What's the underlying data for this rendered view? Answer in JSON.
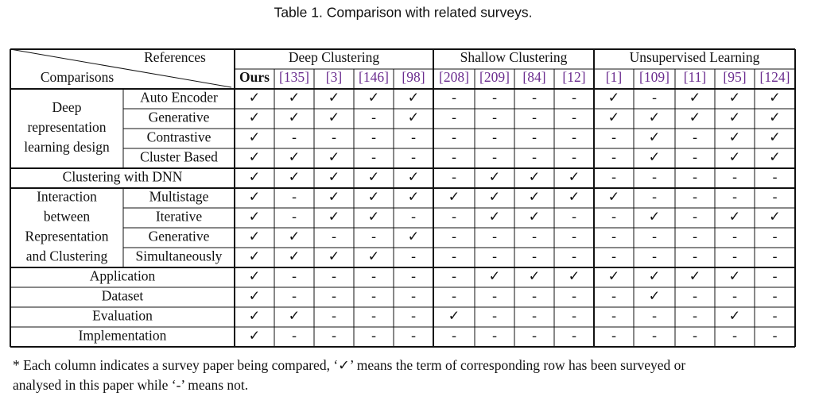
{
  "title": "Table 1.  Comparison with related surveys.",
  "table": {
    "corner_top": "References",
    "corner_bottom": "Comparisons",
    "groups": [
      {
        "label": "Deep Clustering",
        "refs": [
          "Ours",
          "[135]",
          "[3]",
          "[146]",
          "[98]"
        ]
      },
      {
        "label": "Shallow Clustering",
        "refs": [
          "[208]",
          "[209]",
          "[84]",
          "[12]"
        ]
      },
      {
        "label": "Unsupervised Learning",
        "refs": [
          "[1]",
          "[109]",
          "[11]",
          "[95]",
          "[124]"
        ]
      }
    ],
    "sections": [
      {
        "label": [
          "Deep",
          "representation",
          "learning design"
        ],
        "rows": [
          {
            "label": "Auto Encoder",
            "cells": [
              "✓",
              "✓",
              "✓",
              "✓",
              "✓",
              "-",
              "-",
              "-",
              "-",
              "✓",
              "-",
              "✓",
              "✓",
              "✓"
            ]
          },
          {
            "label": "Generative",
            "cells": [
              "✓",
              "✓",
              "✓",
              "-",
              "✓",
              "-",
              "-",
              "-",
              "-",
              "✓",
              "✓",
              "✓",
              "✓",
              "✓"
            ]
          },
          {
            "label": "Contrastive",
            "cells": [
              "✓",
              "-",
              "-",
              "-",
              "-",
              "-",
              "-",
              "-",
              "-",
              "-",
              "✓",
              "-",
              "✓",
              "✓"
            ]
          },
          {
            "label": "Cluster Based",
            "cells": [
              "✓",
              "✓",
              "✓",
              "-",
              "-",
              "-",
              "-",
              "-",
              "-",
              "-",
              "✓",
              "-",
              "✓",
              "✓"
            ]
          }
        ]
      },
      {
        "label": "Clustering with DNN",
        "cells": [
          "✓",
          "✓",
          "✓",
          "✓",
          "✓",
          "-",
          "✓",
          "✓",
          "✓",
          "-",
          "-",
          "-",
          "-",
          "-"
        ]
      },
      {
        "label": [
          "Interaction",
          "between",
          "Representation",
          "and Clustering"
        ],
        "rows": [
          {
            "label": "Multistage",
            "cells": [
              "✓",
              "-",
              "✓",
              "✓",
              "✓",
              "✓",
              "✓",
              "✓",
              "✓",
              "✓",
              "-",
              "-",
              "-",
              "-"
            ]
          },
          {
            "label": "Iterative",
            "cells": [
              "✓",
              "-",
              "✓",
              "✓",
              "-",
              "-",
              "✓",
              "✓",
              "-",
              "-",
              "✓",
              "-",
              "✓",
              "✓"
            ]
          },
          {
            "label": "Generative",
            "cells": [
              "✓",
              "✓",
              "-",
              "-",
              "✓",
              "-",
              "-",
              "-",
              "-",
              "-",
              "-",
              "-",
              "-",
              "-"
            ]
          },
          {
            "label": "Simultaneously",
            "cells": [
              "✓",
              "✓",
              "✓",
              "✓",
              "-",
              "-",
              "-",
              "-",
              "-",
              "-",
              "-",
              "-",
              "-",
              "-"
            ]
          }
        ]
      },
      {
        "label": "Application",
        "cells": [
          "✓",
          "-",
          "-",
          "-",
          "-",
          "-",
          "✓",
          "✓",
          "✓",
          "✓",
          "✓",
          "✓",
          "✓",
          "-"
        ]
      },
      {
        "label": "Dataset",
        "cells": [
          "✓",
          "-",
          "-",
          "-",
          "-",
          "-",
          "-",
          "-",
          "-",
          "-",
          "✓",
          "-",
          "-",
          "-"
        ]
      },
      {
        "label": "Evaluation",
        "cells": [
          "✓",
          "✓",
          "-",
          "-",
          "-",
          "✓",
          "-",
          "-",
          "-",
          "-",
          "-",
          "-",
          "✓",
          "-"
        ]
      },
      {
        "label": "Implementation",
        "cells": [
          "✓",
          "-",
          "-",
          "-",
          "-",
          "-",
          "-",
          "-",
          "-",
          "-",
          "-",
          "-",
          "-",
          "-"
        ]
      }
    ]
  },
  "footnote": [
    "* Each column indicates a survey paper being compared, ‘✓’ means the term of corresponding row has been surveyed or",
    "analysed in this paper while ‘-’ means not."
  ]
}
